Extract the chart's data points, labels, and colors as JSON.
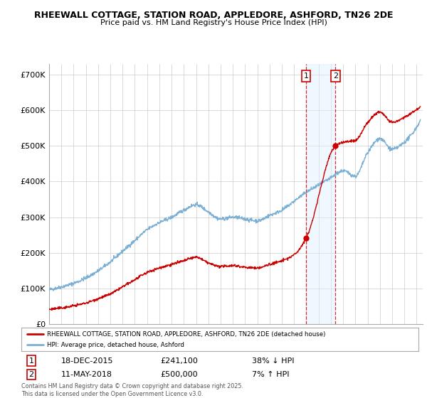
{
  "title_line1": "RHEEWALL COTTAGE, STATION ROAD, APPLEDORE, ASHFORD, TN26 2DE",
  "title_line2": "Price paid vs. HM Land Registry's House Price Index (HPI)",
  "background_color": "#ffffff",
  "plot_bg_color": "#ffffff",
  "grid_color": "#cccccc",
  "hpi_color": "#7bafd4",
  "price_color": "#cc0000",
  "shade_color": "#ddeeff",
  "dashed_color": "#cc0000",
  "transaction1_date": "18-DEC-2015",
  "transaction1_price": "£241,100",
  "transaction1_note": "38% ↓ HPI",
  "transaction2_date": "11-MAY-2018",
  "transaction2_price": "£500,000",
  "transaction2_note": "7% ↑ HPI",
  "legend_label1": "RHEEWALL COTTAGE, STATION ROAD, APPLEDORE, ASHFORD, TN26 2DE (detached house)",
  "legend_label2": "HPI: Average price, detached house, Ashford",
  "footer": "Contains HM Land Registry data © Crown copyright and database right 2025.\nThis data is licensed under the Open Government Licence v3.0.",
  "ylim": [
    0,
    730000
  ],
  "yticks": [
    0,
    100000,
    200000,
    300000,
    400000,
    500000,
    600000,
    700000
  ],
  "ytick_labels": [
    "£0",
    "£100K",
    "£200K",
    "£300K",
    "£400K",
    "£500K",
    "£600K",
    "£700K"
  ],
  "shade_x1": 2015.97,
  "shade_x2": 2018.37,
  "vline1_x": 2015.97,
  "vline2_x": 2018.37,
  "trans1_value": 241100,
  "trans2_value": 500000,
  "xlim_start": 1995,
  "xlim_end": 2025.5
}
